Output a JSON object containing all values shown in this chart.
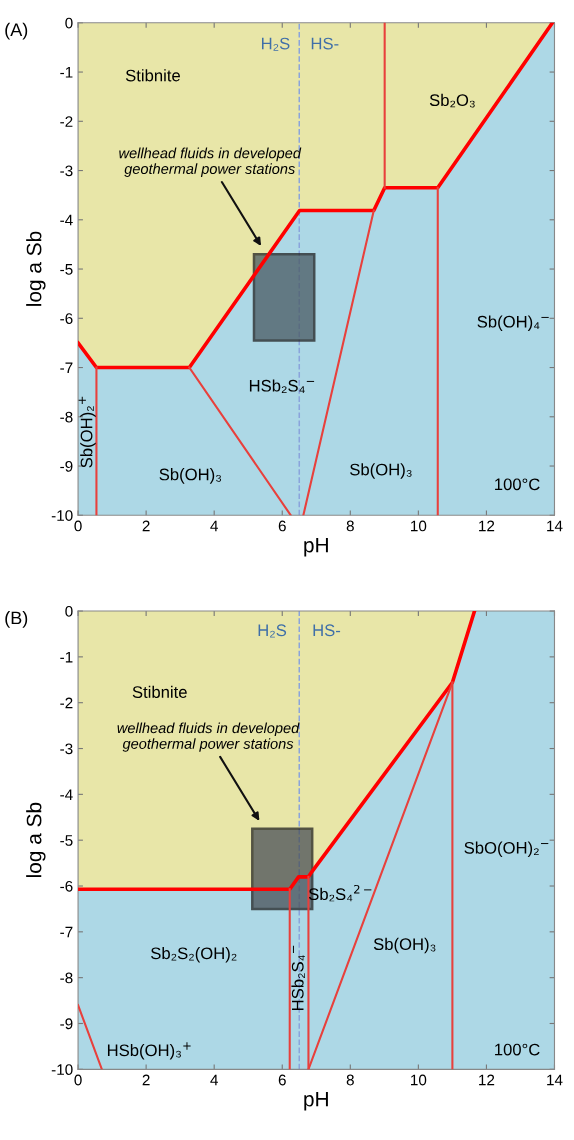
{
  "chart_data": [
    {
      "type": "line",
      "title": "(A)",
      "xlabel": "pH",
      "ylabel": "log a Sb",
      "xlim": [
        0,
        14
      ],
      "ylim": [
        -10,
        0
      ],
      "xticks": [
        0,
        2,
        4,
        6,
        8,
        10,
        12,
        14
      ],
      "yticks": [
        0,
        -1,
        -2,
        -3,
        -4,
        -5,
        -6,
        -7,
        -8,
        -9,
        -10
      ],
      "grid": false,
      "legend": false,
      "bands": [
        {
          "axis": "y",
          "from": -10,
          "to": 0,
          "color": "#add8e6"
        }
      ],
      "ref_lines": [
        {
          "axis": "x",
          "value": 6.5,
          "color": "#8aa4dc",
          "line_style": "dashed"
        }
      ],
      "series": [
        {
          "type": "area",
          "color": "#e8e6a8",
          "x": [
            0,
            0.54,
            3.27,
            6.51,
            8.69,
            9.01,
            10.57,
            13.94
          ],
          "values": [
            -6.5,
            -7.0,
            -7.0,
            -3.81,
            -3.81,
            -3.35,
            -3.35,
            0
          ]
        },
        {
          "color": "#e8403c",
          "x": [
            0.54,
            0.54
          ],
          "values": [
            -7.0,
            -10
          ]
        },
        {
          "color": "#e8403c",
          "x": [
            3.27,
            6.25
          ],
          "values": [
            -7.0,
            -10
          ]
        },
        {
          "color": "#e8403c",
          "x": [
            8.69,
            6.62
          ],
          "values": [
            -3.81,
            -10
          ]
        },
        {
          "color": "#e8403c",
          "x": [
            9.01,
            9.01
          ],
          "values": [
            -3.35,
            0
          ]
        },
        {
          "color": "#e8403c",
          "x": [
            10.57,
            10.57
          ],
          "values": [
            -3.35,
            -10
          ]
        },
        {
          "type": "area",
          "name": "wellhead fluids in developed\ngeothermal power stations",
          "color": "#4a5a63",
          "x": [
            5.17,
            6.94,
            6.94,
            5.17,
            5.17
          ],
          "values": [
            -4.7,
            -4.7,
            -6.45,
            -6.45,
            -4.7
          ]
        }
      ],
      "annotations": [
        "Stibnite",
        "H₂S",
        "HS-",
        "Sb₂O₃",
        "HSb₂S₄$^{−}$",
        "Sb(OH)₄$^{−}$",
        "Sb(OH)₂$^{+}$",
        "Sb(OH)₃",
        "Sb(OH)₃",
        "100°C"
      ]
    },
    {
      "type": "line",
      "title": "(B)",
      "xlabel": "pH",
      "ylabel": "log a Sb",
      "xlim": [
        0,
        14
      ],
      "ylim": [
        -10,
        0
      ],
      "xticks": [
        0,
        2,
        4,
        6,
        8,
        10,
        12,
        14
      ],
      "yticks": [
        0,
        -1,
        -2,
        -3,
        -4,
        -5,
        -6,
        -7,
        -8,
        -9,
        -10
      ],
      "grid": false,
      "legend": false,
      "bands": [
        {
          "axis": "y",
          "from": -10,
          "to": 0,
          "color": "#add8e6"
        }
      ],
      "ref_lines": [
        {
          "axis": "x",
          "value": 6.5,
          "color": "#8aa4dc",
          "line_style": "dashed"
        }
      ],
      "series": [
        {
          "type": "area",
          "color": "#e8e6a8",
          "x": [
            0,
            6.22,
            6.48,
            6.77,
            6.88,
            11.0,
            11.65
          ],
          "values": [
            -6.07,
            -6.07,
            -5.8,
            -5.8,
            -5.68,
            -1.56,
            0
          ]
        },
        {
          "color": "#e8403c",
          "x": [
            6.22,
            6.22
          ],
          "values": [
            -6.07,
            -10
          ]
        },
        {
          "color": "#e8403c",
          "x": [
            6.77,
            6.77
          ],
          "values": [
            -5.8,
            -10
          ]
        },
        {
          "color": "#e8403c",
          "x": [
            6.77,
            11.0
          ],
          "values": [
            -10,
            -1.56
          ]
        },
        {
          "color": "#e8403c",
          "x": [
            11.0,
            11.0
          ],
          "values": [
            -1.56,
            -10
          ]
        },
        {
          "color": "#e8403c",
          "x": [
            0,
            0.7
          ],
          "values": [
            -8.6,
            -10
          ]
        },
        {
          "type": "area",
          "name": "wellhead fluids in developed\ngeothermal power stations",
          "color": "#4a5058",
          "x": [
            5.12,
            6.88,
            6.88,
            5.12,
            5.12
          ],
          "values": [
            -4.75,
            -4.75,
            -6.5,
            -6.5,
            -4.75
          ]
        }
      ],
      "annotations": [
        "Stibnite",
        "H₂S",
        "HS-",
        "Sb₂S₄$^{2−}$",
        "Sb₂S₂(OH)₂",
        "HSb₂S₄$^{−}$",
        "Sb(OH)₃",
        "SbO(OH)₂$^{−}$",
        "HSb(OH)₃$^{+}$",
        "100°C"
      ]
    }
  ]
}
